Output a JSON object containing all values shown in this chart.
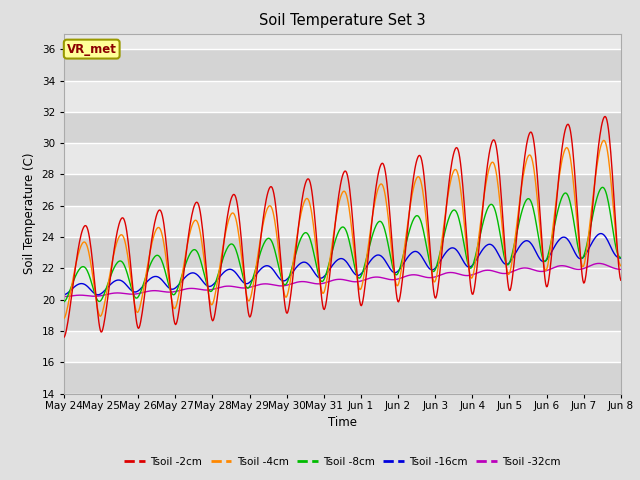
{
  "title": "Soil Temperature Set 3",
  "xlabel": "Time",
  "ylabel": "Soil Temperature (C)",
  "ylim": [
    14,
    37
  ],
  "yticks": [
    14,
    16,
    18,
    20,
    22,
    24,
    26,
    28,
    30,
    32,
    34,
    36
  ],
  "xtick_labels": [
    "May 24",
    "May 25",
    "May 26",
    "May 27",
    "May 28",
    "May 29",
    "May 30",
    "May 31",
    "Jun 1",
    "Jun 2",
    "Jun 3",
    "Jun 4",
    "Jun 5",
    "Jun 6",
    "Jun 7",
    "Jun 8"
  ],
  "colors": {
    "Tsoil -2cm": "#dd0000",
    "Tsoil -4cm": "#ff8800",
    "Tsoil -8cm": "#00bb00",
    "Tsoil -16cm": "#0000dd",
    "Tsoil -32cm": "#bb00bb"
  },
  "bg_color": "#e0e0e0",
  "plot_bg": "#e8e8e8",
  "annotation_text": "VR_met",
  "annotation_bg": "#ffff99",
  "annotation_border": "#999900",
  "days": 15,
  "n_points": 720
}
